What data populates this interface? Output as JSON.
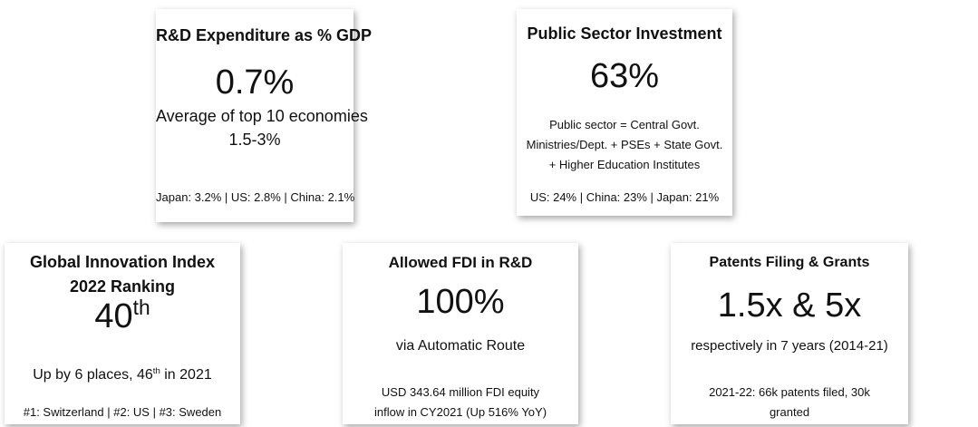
{
  "cards": [
    {
      "title": [
        "R&D Expenditure as % GDP"
      ],
      "value": "0.7%",
      "subtitle": [
        "Average of top 10 economies",
        "1.5-3%"
      ],
      "footer": [
        "Japan: 3.2% | US: 2.8% | China: 2.1%"
      ]
    },
    {
      "title": [
        "Public Sector Investment"
      ],
      "value": "63%",
      "subtitle": [
        "Public sector = Central Govt.",
        "Ministries/Dept. + PSEs + State Govt.",
        "+ Higher Education Institutes"
      ],
      "footer": [
        "US: 24% | China: 23% | Japan: 21%"
      ]
    },
    {
      "title": [
        "Global Innovation Index",
        "2022 Ranking"
      ],
      "value": [
        "40",
        "th"
      ],
      "subtitle": [
        "Up by 6 places, 46",
        "th",
        " in 2021"
      ],
      "footer": [
        "#1: Switzerland | #2: US | #3: Sweden"
      ]
    },
    {
      "title": [
        "Allowed FDI in R&D"
      ],
      "value": "100%",
      "subtitle": [
        "via Automatic Route"
      ],
      "footer": [
        "USD 343.64 million FDI equity",
        "inflow in CY2021 (Up 516% YoY)"
      ]
    },
    {
      "title": [
        "Patents Filing & Grants"
      ],
      "value": "1.5x & 5x",
      "subtitle": [
        "respectively in 7 years (2014-21)"
      ],
      "footer": [
        "2021-22: 66k patents filed, 30k",
        "granted"
      ]
    }
  ]
}
